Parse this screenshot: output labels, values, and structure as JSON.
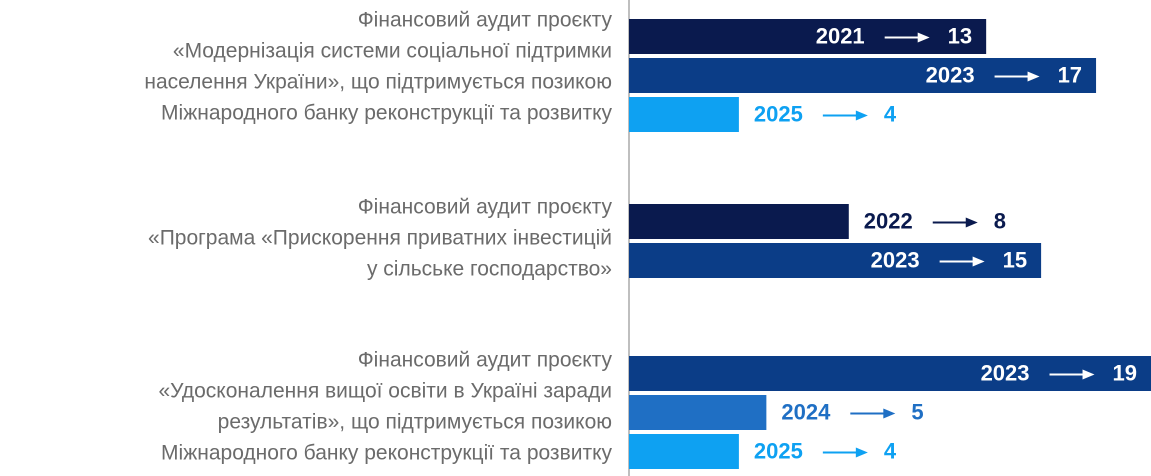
{
  "chart_data": {
    "type": "bar",
    "xlim": [
      0,
      19
    ],
    "groups": [
      {
        "label_lines": [
          "Фінансовий аудит проєкту",
          "«Модернізація системи соціальної підтримки",
          "населення України», що підтримується позикою",
          "Міжнародного банку реконструкції та розвитку"
        ],
        "bars": [
          {
            "year": "2021",
            "value": 13,
            "color": "#0a1a4e"
          },
          {
            "year": "2023",
            "value": 17,
            "color": "#0b3d87"
          },
          {
            "year": "2025",
            "value": 4,
            "color": "#0ea1f2"
          }
        ]
      },
      {
        "label_lines": [
          "Фінансовий аудит проєкту",
          "«Програма «Прискорення приватних інвестицій",
          "у сільське господарство»"
        ],
        "bars": [
          {
            "year": "2022",
            "value": 8,
            "color": "#0a1a4e"
          },
          {
            "year": "2023",
            "value": 15,
            "color": "#0b3d87"
          }
        ]
      },
      {
        "label_lines": [
          "Фінансовий аудит проєкту",
          "«Удосконалення вищої освіти в Україні заради",
          "результатів», що підтримується позикою",
          "Міжнародного банку реконструкції та розвитку"
        ],
        "bars": [
          {
            "year": "2023",
            "value": 19,
            "color": "#0b3d87"
          },
          {
            "year": "2024",
            "value": 5,
            "color": "#1f6fc4"
          },
          {
            "year": "2025",
            "value": 4,
            "color": "#0ea1f2"
          }
        ]
      }
    ]
  }
}
